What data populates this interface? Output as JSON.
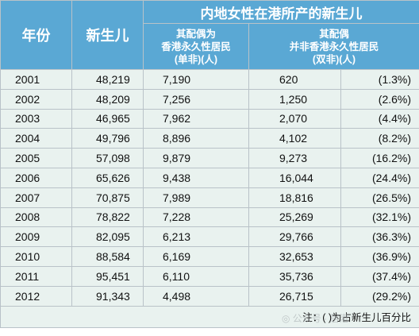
{
  "header": {
    "year": "年份",
    "births": "新生儿",
    "group_title": "内地女性在港所产的新生儿",
    "single_lines": [
      "其配偶为",
      "香港永久性居民",
      "(单非)(人)"
    ],
    "double_lines": [
      "其配偶",
      "并非香港永久性居民",
      "(双非)(人)"
    ]
  },
  "rows": [
    {
      "year": "2001",
      "total": "48,219",
      "single": "7,190",
      "double": "620",
      "pct": "(1.3%)"
    },
    {
      "year": "2002",
      "total": "48,209",
      "single": "7,256",
      "double": "1,250",
      "pct": "(2.6%)"
    },
    {
      "year": "2003",
      "total": "46,965",
      "single": "7,962",
      "double": "2,070",
      "pct": "(4.4%)"
    },
    {
      "year": "2004",
      "total": "49,796",
      "single": "8,896",
      "double": "4,102",
      "pct": "(8.2%)"
    },
    {
      "year": "2005",
      "total": "57,098",
      "single": "9,879",
      "double": "9,273",
      "pct": "(16.2%)"
    },
    {
      "year": "2006",
      "total": "65,626",
      "single": "9,438",
      "double": "16,044",
      "pct": "(24.4%)"
    },
    {
      "year": "2007",
      "total": "70,875",
      "single": "7,989",
      "double": "18,816",
      "pct": "(26.5%)"
    },
    {
      "year": "2008",
      "total": "78,822",
      "single": "7,228",
      "double": "25,269",
      "pct": "(32.1%)"
    },
    {
      "year": "2009",
      "total": "82,095",
      "single": "6,213",
      "double": "29,766",
      "pct": "(36.3%)"
    },
    {
      "year": "2010",
      "total": "88,584",
      "single": "6,169",
      "double": "32,653",
      "pct": "(36.9%)"
    },
    {
      "year": "2011",
      "total": "95,451",
      "single": "6,110",
      "double": "35,736",
      "pct": "(37.4%)"
    },
    {
      "year": "2012",
      "total": "91,343",
      "single": "4,498",
      "double": "26,715",
      "pct": "(29.2%)"
    }
  ],
  "note": "注：( )为占新生儿百分比"
}
